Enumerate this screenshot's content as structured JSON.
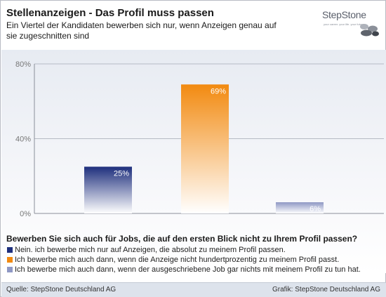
{
  "header": {
    "title": "Stellenanzeigen - Das Profil muss passen",
    "subtitle": "Ein Viertel der Kandidaten bewerben sich nur, wenn Anzeigen genau auf sie zugeschnitten sind"
  },
  "logo": {
    "wordmark": "StepStone",
    "tagline": "your career. your life. your future."
  },
  "chart_data": {
    "type": "bar",
    "categories": [
      "Nein. ich bewerbe mich nur auf Anzeigen, die absolut zu meinem Profil passen.",
      "Ich bewerbe mich auch dann, wenn die Anzeige nicht hundertprozentig zu meinem Profil passt.",
      "Ich bewerbe mich auch dann, wenn der ausgeschriebene Job gar nichts mit meinem Profil zu tun hat."
    ],
    "values": [
      25,
      69,
      6
    ],
    "value_labels": [
      "25%",
      "69%",
      "6%"
    ],
    "colors": [
      "#1e2f7d",
      "#f28a10",
      "#8f98c4"
    ],
    "yticks": [
      0,
      40,
      80
    ],
    "ytick_labels": [
      "0%",
      "40%",
      "80%"
    ],
    "ylim": [
      0,
      80
    ],
    "grid": true,
    "legend_position": "bottom",
    "question": "Bewerben Sie sich auch für Jobs, die auf den ersten Blick nicht zu Ihrem Profil passen?"
  },
  "footer": {
    "source": "Quelle: StepStone Deutschland AG",
    "graphic": "Grafik: StepStone Deutschland AG"
  }
}
